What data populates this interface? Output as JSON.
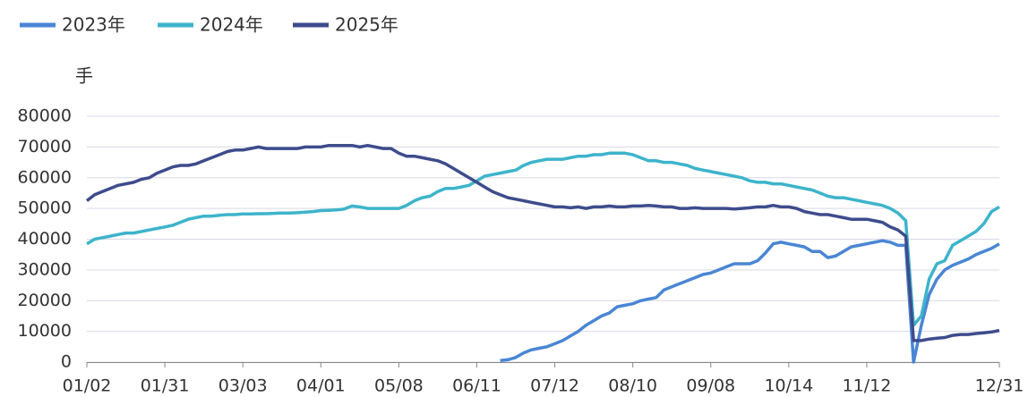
{
  "chart_data": {
    "type": "line",
    "y_label": "手",
    "categories": [
      "01/02",
      null,
      null,
      null,
      null,
      null,
      null,
      null,
      null,
      null,
      "01/31",
      null,
      null,
      null,
      null,
      null,
      null,
      null,
      null,
      null,
      "03/03",
      null,
      null,
      null,
      null,
      null,
      null,
      null,
      null,
      null,
      "04/01",
      null,
      null,
      null,
      null,
      null,
      null,
      null,
      null,
      null,
      "05/08",
      null,
      null,
      null,
      null,
      null,
      null,
      null,
      null,
      null,
      "06/11",
      null,
      null,
      null,
      null,
      null,
      null,
      null,
      null,
      null,
      "07/12",
      null,
      null,
      null,
      null,
      null,
      null,
      null,
      null,
      null,
      "08/10",
      null,
      null,
      null,
      null,
      null,
      null,
      null,
      null,
      null,
      "09/08",
      null,
      null,
      null,
      null,
      null,
      null,
      null,
      null,
      null,
      "10/14",
      null,
      null,
      null,
      null,
      null,
      null,
      null,
      null,
      null,
      "11/12",
      null,
      null,
      null,
      null,
      null,
      null,
      null,
      null,
      null,
      null,
      null,
      null,
      null,
      null,
      null,
      null,
      "12/31"
    ],
    "series": [
      {
        "name": "2023年",
        "color": "#4a86d4",
        "values": [
          null,
          null,
          null,
          null,
          null,
          null,
          null,
          null,
          null,
          null,
          null,
          null,
          null,
          null,
          null,
          null,
          null,
          null,
          null,
          null,
          null,
          null,
          null,
          null,
          null,
          null,
          null,
          null,
          null,
          null,
          null,
          null,
          null,
          null,
          null,
          null,
          null,
          null,
          null,
          null,
          null,
          null,
          null,
          null,
          null,
          null,
          null,
          null,
          null,
          null,
          null,
          null,
          null,
          500,
          800,
          1500,
          3000,
          4000,
          4500,
          5000,
          6000,
          7000,
          8500,
          10000,
          12000,
          13500,
          15000,
          16000,
          18000,
          18500,
          19000,
          20000,
          20500,
          21000,
          23500,
          24500,
          25500,
          26500,
          27500,
          28500,
          29000,
          30000,
          31000,
          32000,
          32000,
          32000,
          33000,
          35500,
          38500,
          39000,
          38500,
          38000,
          37500,
          36000,
          36000,
          34000,
          34500,
          36000,
          37500,
          38000,
          38500,
          39000,
          39500,
          39000,
          38000,
          38000,
          0,
          12000,
          22000,
          27000,
          30000,
          31500,
          32500,
          33500,
          35000,
          36000,
          37000,
          38500
        ]
      },
      {
        "name": "2024年",
        "color": "#3db4cb",
        "values": [
          38500,
          40000,
          40500,
          41000,
          41500,
          42000,
          42000,
          42500,
          43000,
          43500,
          44000,
          44500,
          45500,
          46500,
          47000,
          47500,
          47500,
          47800,
          48000,
          48000,
          48200,
          48200,
          48300,
          48300,
          48400,
          48500,
          48500,
          48600,
          48800,
          49000,
          49300,
          49400,
          49500,
          49800,
          50800,
          50500,
          50000,
          50000,
          50000,
          50000,
          50000,
          51000,
          52500,
          53500,
          54000,
          55500,
          56500,
          56500,
          57000,
          57500,
          59000,
          60500,
          61000,
          61500,
          62000,
          62500,
          64000,
          65000,
          65500,
          66000,
          66000,
          66000,
          66500,
          67000,
          67000,
          67500,
          67500,
          68000,
          68000,
          68000,
          67500,
          66500,
          65500,
          65500,
          65000,
          65000,
          64500,
          64000,
          63000,
          62500,
          62000,
          61500,
          61000,
          60500,
          60000,
          59000,
          58500,
          58500,
          58000,
          58000,
          57500,
          57000,
          56500,
          56000,
          55000,
          54000,
          53500,
          53500,
          53000,
          52500,
          52000,
          51500,
          51000,
          50000,
          48500,
          46000,
          12000,
          15000,
          27000,
          32000,
          33000,
          38000,
          39500,
          41000,
          42500,
          45000,
          49000,
          50500
        ]
      },
      {
        "name": "2025年",
        "color": "#3e4c8c",
        "values": [
          52500,
          54500,
          55500,
          56500,
          57500,
          58000,
          58500,
          59500,
          60000,
          61500,
          62500,
          63500,
          64000,
          64000,
          64500,
          65500,
          66500,
          67500,
          68500,
          69000,
          69000,
          69500,
          70000,
          69500,
          69500,
          69500,
          69500,
          69500,
          70000,
          70000,
          70000,
          70500,
          70500,
          70500,
          70500,
          70000,
          70500,
          70000,
          69500,
          69500,
          68000,
          67000,
          67000,
          66500,
          66000,
          65500,
          64500,
          63000,
          61500,
          60000,
          58500,
          57000,
          55500,
          54500,
          53500,
          53000,
          52500,
          52000,
          51500,
          51000,
          50500,
          50500,
          50200,
          50500,
          50000,
          50500,
          50500,
          50800,
          50500,
          50500,
          50800,
          50800,
          51000,
          50800,
          50500,
          50500,
          50000,
          50000,
          50200,
          50000,
          50000,
          50000,
          50000,
          49800,
          50000,
          50200,
          50500,
          50500,
          51000,
          50500,
          50500,
          50000,
          49000,
          48500,
          48000,
          48000,
          47500,
          47000,
          46500,
          46500,
          46500,
          46000,
          45500,
          44000,
          43000,
          41000,
          7000,
          7000,
          7500,
          7800,
          8000,
          8700,
          9000,
          9000,
          9300,
          9500,
          9800,
          10300
        ]
      }
    ],
    "ylim": [
      0,
      80000
    ],
    "yticks": [
      0,
      10000,
      20000,
      30000,
      40000,
      50000,
      60000,
      70000,
      80000
    ],
    "grid": true
  }
}
